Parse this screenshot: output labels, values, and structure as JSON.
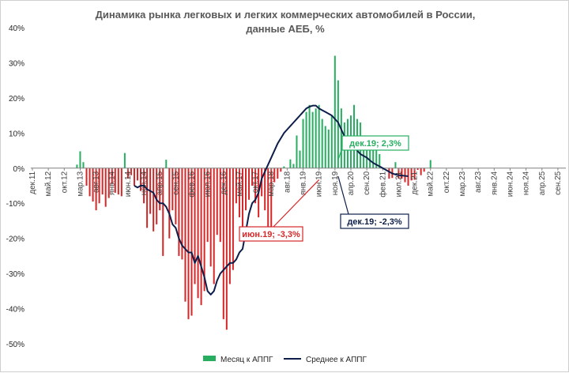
{
  "chart_data": {
    "type": "bar",
    "title": "Динамика рынка легковых и легких коммерческих автомобилей в России,",
    "subtitle": "данные АЕБ, %",
    "ylim": [
      -0.5,
      0.4
    ],
    "yticks": [
      0.4,
      0.3,
      0.2,
      0.1,
      0.0,
      -0.1,
      -0.2,
      -0.3,
      -0.4,
      -0.5
    ],
    "ytick_labels": [
      "40%",
      "30%",
      "20%",
      "10%",
      "0%",
      "-10%",
      "-20%",
      "-30%",
      "-40%",
      "-50%"
    ],
    "x_start": "дек.11",
    "x_months_total": 168,
    "xtick_labels": [
      "дек.11",
      "май.12",
      "окт.12",
      "мар.13",
      "авг.13",
      "янв.14",
      "июн.14",
      "ноя.14",
      "апр.15",
      "сен.15",
      "фев.16",
      "июл.16",
      "дек.16",
      "май.17",
      "окт.17",
      "мар.18",
      "авг.18",
      "янв.19",
      "июн.19",
      "ноя.19",
      "апр.20",
      "сен.20",
      "фев.21",
      "июл.21",
      "дек.21",
      "май.22",
      "окт.22",
      "мар.23",
      "авг.23",
      "янв.24",
      "июн.24",
      "ноя.24",
      "апр.25",
      "сен.25"
    ],
    "grid": false,
    "legend_position": "bottom",
    "colors": {
      "positive": "#27ae60",
      "negative": "#d62728",
      "average": "#0d1e4a",
      "axis": "#808080",
      "callout_green": "#27ae60",
      "callout_red": "#d62728",
      "callout_navy": "#0d1e4a"
    },
    "series": [
      {
        "name": "Месяц к АППГ",
        "kind": "bar",
        "values": [
          0.0,
          0.0,
          0.0,
          0.0,
          0.0,
          0.0,
          0.0,
          0.0,
          0.0,
          0.0,
          0.0,
          0.0,
          0.0,
          0.0,
          0.01,
          0.048,
          0.017,
          -0.05,
          -0.08,
          -0.095,
          -0.12,
          -0.1,
          -0.075,
          -0.11,
          -0.085,
          -0.045,
          -0.07,
          -0.075,
          -0.08,
          0.043,
          -0.03,
          -0.02,
          -0.05,
          -0.035,
          -0.065,
          -0.1,
          -0.17,
          -0.13,
          -0.18,
          -0.16,
          -0.12,
          -0.25,
          0.024,
          -0.2,
          -0.12,
          -0.16,
          -0.25,
          -0.26,
          -0.38,
          -0.43,
          -0.42,
          -0.33,
          -0.37,
          -0.39,
          -0.35,
          -0.21,
          -0.28,
          -0.33,
          -0.19,
          -0.21,
          -0.43,
          -0.46,
          -0.33,
          -0.29,
          -0.1,
          -0.14,
          -0.2,
          -0.12,
          -0.09,
          -0.05,
          -0.1,
          -0.14,
          -0.08,
          -0.12,
          -0.17,
          -0.18,
          -0.04,
          -0.03,
          -0.01,
          0.005,
          0.0,
          0.025,
          0.012,
          0.093,
          0.05,
          0.14,
          0.16,
          0.18,
          0.16,
          0.17,
          0.18,
          0.14,
          0.12,
          0.11,
          0.15,
          0.32,
          0.25,
          0.17,
          0.13,
          0.14,
          0.15,
          0.18,
          0.14,
          0.13,
          0.085,
          0.06,
          0.07,
          0.08,
          0.09,
          0.04,
          0.0,
          0.0,
          -0.03,
          -0.028,
          0.017,
          -0.03,
          -0.03,
          -0.04,
          -0.05,
          -0.035,
          -0.033,
          -0.005,
          -0.02,
          -0.01,
          0.0,
          0.023
        ],
        "color": "#27ae60"
      },
      {
        "name": "Среднее к АППГ",
        "kind": "line",
        "values": [
          null,
          null,
          null,
          null,
          null,
          null,
          null,
          null,
          null,
          null,
          null,
          null,
          null,
          null,
          null,
          null,
          null,
          null,
          null,
          null,
          null,
          null,
          null,
          null,
          null,
          null,
          null,
          null,
          null,
          null,
          null,
          null,
          -0.05,
          -0.055,
          -0.05,
          -0.05,
          -0.06,
          -0.065,
          -0.07,
          -0.09,
          -0.1,
          -0.1,
          -0.11,
          -0.13,
          -0.16,
          -0.17,
          -0.2,
          -0.22,
          -0.23,
          -0.24,
          -0.24,
          -0.27,
          -0.25,
          -0.28,
          -0.31,
          -0.35,
          -0.36,
          -0.35,
          -0.32,
          -0.3,
          -0.29,
          -0.28,
          -0.27,
          -0.27,
          -0.26,
          -0.24,
          -0.23,
          -0.18,
          -0.13,
          -0.1,
          -0.09,
          -0.07,
          -0.03,
          -0.01,
          0.01,
          0.03,
          0.05,
          0.07,
          0.085,
          0.1,
          0.11,
          0.12,
          0.13,
          0.14,
          0.15,
          0.16,
          0.17,
          0.175,
          0.178,
          0.178,
          0.17,
          0.165,
          0.16,
          0.155,
          0.15,
          0.14,
          0.13,
          0.11,
          0.09,
          0.08,
          0.07,
          0.06,
          0.05,
          0.04,
          0.035,
          0.03,
          0.022,
          0.015,
          0.01,
          0.005,
          0.0,
          -0.005,
          -0.01,
          -0.015,
          -0.018,
          -0.02,
          -0.021,
          -0.022,
          -0.023
        ],
        "color": "#0d1e4a"
      }
    ],
    "annotations": [
      {
        "text": "дек.19; 2,3%",
        "color": "#27ae60",
        "points_to": "дек.19"
      },
      {
        "text": "июн.19; -3,3%",
        "color": "#d62728",
        "points_to": "июн.19"
      },
      {
        "text": "дек.19; -2,3%",
        "color": "#0d1e4a",
        "points_to": "дек.19"
      }
    ]
  }
}
